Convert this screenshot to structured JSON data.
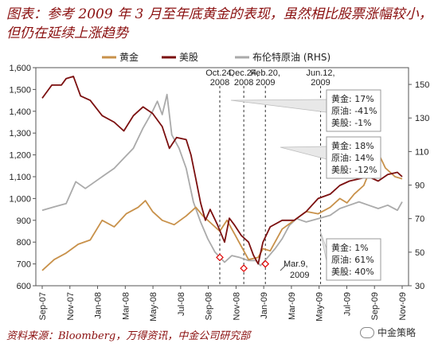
{
  "title": "图表：参考 2009 年 3 月至年底黄金的表现，虽然相比股票涨幅较小，但仍在延续上涨趋势",
  "source": "资料来源：Bloomberg，万得资讯，中金公司研究部",
  "watermark": "中金策略",
  "chart_data": {
    "type": "line",
    "title": "",
    "xlabel": "",
    "ylabel": "",
    "x_ticks": [
      "Sep-07",
      "Nov-07",
      "Jan-08",
      "Mar-08",
      "May-08",
      "Jul-08",
      "Sep-08",
      "Nov-08",
      "Jan-09",
      "Mar-09",
      "May-09",
      "Jul-09",
      "Sep-09",
      "Nov-09"
    ],
    "ylim_left": [
      600,
      1600
    ],
    "yticks_left": [
      "600",
      "700",
      "800",
      "900",
      "1,000",
      "1,100",
      "1,200",
      "1,300",
      "1,400",
      "1,500",
      "1,600"
    ],
    "ylim_right": [
      30,
      160
    ],
    "yticks_right": [
      "30",
      "50",
      "70",
      "90",
      "110",
      "130",
      "150"
    ],
    "legend_position": "top",
    "colors": {
      "gold": "#c8914a",
      "equity": "#7b0f0f",
      "oil": "#aaaaaa"
    },
    "series": [
      {
        "name": "黄金",
        "axis": "left",
        "points": [
          [
            0,
            670
          ],
          [
            0.5,
            720
          ],
          [
            1,
            750
          ],
          [
            1.5,
            790
          ],
          [
            2,
            810
          ],
          [
            2.5,
            900
          ],
          [
            3,
            870
          ],
          [
            3.5,
            930
          ],
          [
            4,
            960
          ],
          [
            4.3,
            990
          ],
          [
            4.6,
            940
          ],
          [
            5,
            900
          ],
          [
            5.5,
            880
          ],
          [
            6,
            920
          ],
          [
            6.4,
            960
          ],
          [
            6.7,
            920
          ],
          [
            7,
            890
          ],
          [
            7.4,
            850
          ],
          [
            7.7,
            900
          ],
          [
            8,
            840
          ],
          [
            8.3,
            780
          ],
          [
            8.6,
            720
          ],
          [
            9,
            730
          ],
          [
            9.2,
            770
          ],
          [
            9.5,
            760
          ],
          [
            10,
            860
          ],
          [
            10.5,
            900
          ],
          [
            11,
            940
          ],
          [
            11.5,
            930
          ],
          [
            12,
            960
          ],
          [
            12.4,
            1000
          ],
          [
            12.7,
            980
          ],
          [
            13,
            1020
          ],
          [
            13.4,
            1060
          ],
          [
            13.7,
            1140
          ],
          [
            14,
            1210
          ],
          [
            14.3,
            1140
          ],
          [
            14.7,
            1100
          ],
          [
            15,
            1090
          ]
        ]
      },
      {
        "name": "美股",
        "axis": "left",
        "points": [
          [
            0,
            1460
          ],
          [
            0.4,
            1520
          ],
          [
            0.8,
            1520
          ],
          [
            1,
            1550
          ],
          [
            1.3,
            1560
          ],
          [
            1.6,
            1470
          ],
          [
            2,
            1450
          ],
          [
            2.5,
            1380
          ],
          [
            3,
            1350
          ],
          [
            3.4,
            1310
          ],
          [
            3.8,
            1380
          ],
          [
            4.2,
            1420
          ],
          [
            4.6,
            1390
          ],
          [
            5,
            1330
          ],
          [
            5.3,
            1230
          ],
          [
            5.6,
            1280
          ],
          [
            6,
            1270
          ],
          [
            6.2,
            1200
          ],
          [
            6.4,
            1090
          ],
          [
            6.6,
            980
          ],
          [
            6.8,
            900
          ],
          [
            7,
            950
          ],
          [
            7.3,
            880
          ],
          [
            7.6,
            800
          ],
          [
            7.8,
            910
          ],
          [
            8,
            880
          ],
          [
            8.3,
            830
          ],
          [
            8.6,
            800
          ],
          [
            8.8,
            740
          ],
          [
            9,
            700
          ],
          [
            9.2,
            800
          ],
          [
            9.5,
            870
          ],
          [
            10,
            900
          ],
          [
            10.5,
            900
          ],
          [
            11,
            940
          ],
          [
            11.5,
            1000
          ],
          [
            12,
            1020
          ],
          [
            12.4,
            1060
          ],
          [
            12.8,
            1080
          ],
          [
            13.2,
            1090
          ],
          [
            13.6,
            1100
          ],
          [
            14,
            1080
          ],
          [
            14.4,
            1110
          ],
          [
            14.8,
            1120
          ],
          [
            15,
            1100
          ]
        ]
      },
      {
        "name": "布伦特原油 (RHS)",
        "axis": "right",
        "points": [
          [
            0,
            75
          ],
          [
            0.5,
            77
          ],
          [
            1,
            79
          ],
          [
            1.4,
            92
          ],
          [
            1.8,
            88
          ],
          [
            2.2,
            92
          ],
          [
            2.6,
            96
          ],
          [
            3,
            100
          ],
          [
            3.4,
            106
          ],
          [
            3.8,
            112
          ],
          [
            4.2,
            124
          ],
          [
            4.6,
            134
          ],
          [
            4.8,
            140
          ],
          [
            5,
            132
          ],
          [
            5.2,
            144
          ],
          [
            5.4,
            120
          ],
          [
            5.7,
            112
          ],
          [
            6,
            100
          ],
          [
            6.3,
            80
          ],
          [
            6.6,
            68
          ],
          [
            6.9,
            58
          ],
          [
            7.2,
            50
          ],
          [
            7.6,
            44
          ],
          [
            7.9,
            48
          ],
          [
            8.2,
            47
          ],
          [
            8.6,
            45
          ],
          [
            8.9,
            45
          ],
          [
            9.1,
            42
          ],
          [
            9.4,
            47
          ],
          [
            9.7,
            52
          ],
          [
            10,
            58
          ],
          [
            10.3,
            66
          ],
          [
            10.6,
            70
          ],
          [
            11,
            68
          ],
          [
            11.5,
            70
          ],
          [
            12,
            72
          ],
          [
            12.4,
            76
          ],
          [
            12.8,
            78
          ],
          [
            13.2,
            80
          ],
          [
            13.6,
            78
          ],
          [
            14,
            76
          ],
          [
            14.4,
            78
          ],
          [
            14.8,
            75
          ],
          [
            15,
            80
          ]
        ]
      }
    ],
    "event_lines": [
      {
        "label": "Oct.24, 2008",
        "x": 7.4
      },
      {
        "label": "Dec.24, 2008",
        "x": 8.4
      },
      {
        "label": "Feb.20, 2009",
        "x": 9.3
      },
      {
        "label": "Jun.12, 2009",
        "x": 11.6
      }
    ],
    "markers": [
      {
        "series": "黄金",
        "x": 7.4,
        "y": 730
      },
      {
        "series": "黄金",
        "x": 8.4,
        "y": 680
      },
      {
        "series": "黄金",
        "x": 9.3,
        "y": 700
      }
    ],
    "annotations": [
      {
        "text": "Mar.9, 2009",
        "x": 9.5,
        "y": 700
      },
      {
        "lines": [
          "黄金:  17%",
          "原油:  -41%",
          "美股:  -1%"
        ]
      },
      {
        "lines": [
          "黄金:  18%",
          "原油:  14%",
          "美股:  -12%"
        ]
      },
      {
        "lines": [
          "黄金:  1%",
          "原油:  61%",
          "美股:  40%"
        ]
      }
    ]
  }
}
